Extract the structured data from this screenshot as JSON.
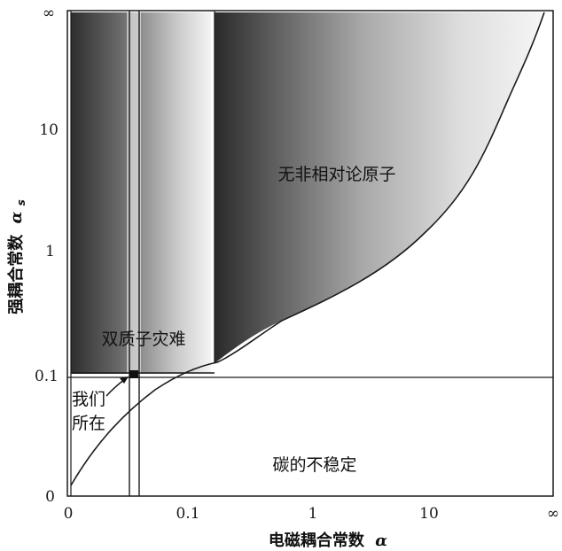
{
  "x_axis": {
    "ticks": [
      "0",
      "0.1",
      "1",
      "10",
      "∞"
    ],
    "title": "电磁耦合常数",
    "symbol": "α"
  },
  "y_axis": {
    "ticks": [
      "0",
      "0.1",
      "1",
      "10",
      "∞"
    ],
    "title": "强耦合常数",
    "symbol": "α",
    "subscript": "s"
  },
  "regions": {
    "nonrelativistic_atoms": "无非相对论原子",
    "diproton_disaster": "双质子灾难",
    "carbon_instability": "碳的不稳定"
  },
  "annotation": {
    "we_are_here": [
      "我们",
      "所在"
    ]
  },
  "colors": {
    "ink": "#111111",
    "dark_shade": "#3a3a3a",
    "light_shade": "#f2f2f2"
  }
}
